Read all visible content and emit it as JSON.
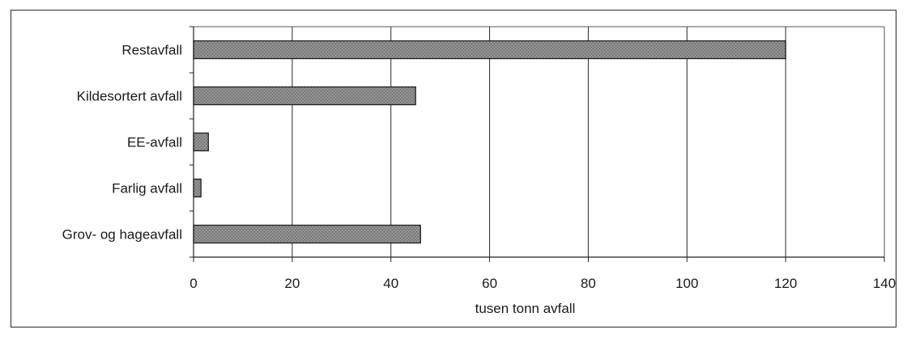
{
  "chart_data": {
    "type": "bar",
    "orientation": "horizontal",
    "categories": [
      "Restavfall",
      "Kildesortert avfall",
      "EE-avfall",
      "Farlig avfall",
      "Grov- og hageavfall"
    ],
    "values": [
      120,
      45,
      3,
      1.5,
      46
    ],
    "xlabel": "tusen tonn avfall",
    "ylabel": "",
    "title": "",
    "xlim": [
      0,
      140
    ],
    "x_ticks": [
      0,
      20,
      40,
      60,
      80,
      100,
      120,
      140
    ],
    "grid": "vertical",
    "legend": "none",
    "bar_color": "#8a8a8a",
    "bar_edge_color": "#1e1e1e"
  }
}
